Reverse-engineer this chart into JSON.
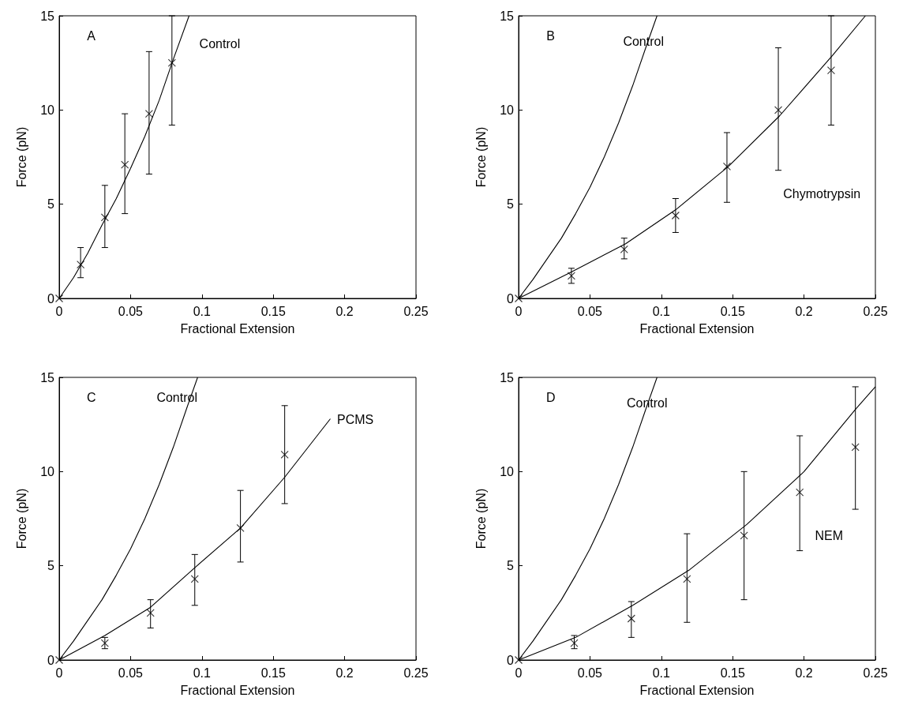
{
  "chart_data": [
    {
      "type": "scatter",
      "xlabel": "Fractional Extension",
      "ylabel": "Force (pN)",
      "xlim": [
        0,
        0.25
      ],
      "xticks": [
        0,
        0.05,
        0.1,
        0.15,
        0.2,
        0.25
      ],
      "ylim": [
        0,
        15
      ],
      "yticks": [
        0,
        5,
        10,
        15
      ],
      "grid": false,
      "annotations": [
        "A",
        "Control"
      ],
      "series": [
        {
          "marker": "cross",
          "color": "#000000",
          "x": [
            0,
            0.015,
            0.032,
            0.046,
            0.063,
            0.079
          ],
          "values": [
            0,
            1.8,
            4.3,
            7.1,
            9.8,
            12.5
          ],
          "errors": [
            null,
            [
              1.1,
              2.7
            ],
            [
              2.7,
              6.0
            ],
            [
              4.5,
              9.8
            ],
            [
              6.6,
              13.1
            ],
            [
              9.2,
              15
            ]
          ]
        },
        {
          "type": "line",
          "marker": "none",
          "line_style": "solid",
          "color": "#000000",
          "x": [
            0,
            0.01,
            0.02,
            0.03,
            0.04,
            0.05,
            0.06,
            0.07,
            0.08,
            0.091
          ],
          "values": [
            0,
            1.1,
            2.4,
            3.9,
            5.3,
            6.9,
            8.6,
            10.5,
            12.7,
            15
          ]
        }
      ]
    },
    {
      "type": "scatter",
      "xlabel": "Fractional Extension",
      "ylabel": "Force (pN)",
      "xlim": [
        0,
        0.25
      ],
      "xticks": [
        0,
        0.05,
        0.1,
        0.15,
        0.2,
        0.25
      ],
      "ylim": [
        0,
        15
      ],
      "yticks": [
        0,
        5,
        10,
        15
      ],
      "grid": false,
      "annotations": [
        "B",
        "Control",
        "Chymotrypsin"
      ],
      "series": [
        {
          "type": "line",
          "marker": "none",
          "line_style": "solid",
          "color": "#000000",
          "x": [
            0,
            0.01,
            0.02,
            0.03,
            0.04,
            0.05,
            0.06,
            0.07,
            0.08,
            0.09,
            0.097
          ],
          "values": [
            0,
            1.0,
            2.1,
            3.2,
            4.5,
            5.9,
            7.5,
            9.3,
            11.3,
            13.5,
            15
          ]
        },
        {
          "marker": "cross",
          "color": "#000000",
          "x": [
            0,
            0.037,
            0.074,
            0.11,
            0.146,
            0.182,
            0.219
          ],
          "values": [
            0,
            1.2,
            2.6,
            4.4,
            7.0,
            10.0,
            12.1
          ],
          "errors": [
            null,
            [
              0.8,
              1.6
            ],
            [
              2.1,
              3.2
            ],
            [
              3.5,
              5.3
            ],
            [
              5.1,
              8.8
            ],
            [
              6.8,
              13.3
            ],
            [
              9.2,
              15
            ]
          ]
        },
        {
          "type": "line",
          "marker": "none",
          "line_style": "solid",
          "color": "#000000",
          "x": [
            0,
            0.037,
            0.075,
            0.11,
            0.147,
            0.183,
            0.22,
            0.243
          ],
          "values": [
            0,
            1.4,
            2.9,
            4.7,
            7.0,
            9.7,
            12.9,
            15
          ]
        }
      ]
    },
    {
      "type": "scatter",
      "xlabel": "Fractional Extension",
      "ylabel": "Force (pN)",
      "xlim": [
        0,
        0.25
      ],
      "xticks": [
        0,
        0.05,
        0.1,
        0.15,
        0.2,
        0.25
      ],
      "ylim": [
        0,
        15
      ],
      "yticks": [
        0,
        5,
        10,
        15
      ],
      "grid": false,
      "annotations": [
        "C",
        "Control",
        "PCMS"
      ],
      "series": [
        {
          "type": "line",
          "marker": "none",
          "line_style": "solid",
          "color": "#000000",
          "x": [
            0,
            0.01,
            0.02,
            0.03,
            0.04,
            0.05,
            0.06,
            0.07,
            0.08,
            0.09,
            0.097
          ],
          "values": [
            0,
            1.0,
            2.1,
            3.2,
            4.5,
            5.9,
            7.5,
            9.3,
            11.3,
            13.5,
            15
          ]
        },
        {
          "marker": "cross",
          "color": "#000000",
          "x": [
            0,
            0.032,
            0.064,
            0.095,
            0.127,
            0.158
          ],
          "values": [
            0,
            0.9,
            2.5,
            4.3,
            7.0,
            10.9
          ],
          "errors": [
            null,
            [
              0.6,
              1.2
            ],
            [
              1.7,
              3.2
            ],
            [
              2.9,
              5.6
            ],
            [
              5.2,
              9.0
            ],
            [
              8.3,
              13.5
            ]
          ]
        },
        {
          "type": "line",
          "marker": "none",
          "line_style": "solid",
          "color": "#000000",
          "x": [
            0,
            0.032,
            0.064,
            0.095,
            0.127,
            0.158,
            0.19
          ],
          "values": [
            0,
            1.3,
            2.8,
            4.9,
            7.0,
            9.7,
            12.8
          ]
        }
      ]
    },
    {
      "type": "scatter",
      "xlabel": "Fractional Extension",
      "ylabel": "Force (pN)",
      "xlim": [
        0,
        0.25
      ],
      "xticks": [
        0,
        0.05,
        0.1,
        0.15,
        0.2,
        0.25
      ],
      "ylim": [
        0,
        15
      ],
      "yticks": [
        0,
        5,
        10,
        15
      ],
      "grid": false,
      "annotations": [
        "D",
        "Control",
        "NEM"
      ],
      "series": [
        {
          "type": "line",
          "marker": "none",
          "line_style": "solid",
          "color": "#000000",
          "x": [
            0,
            0.01,
            0.02,
            0.03,
            0.04,
            0.05,
            0.06,
            0.07,
            0.08,
            0.09,
            0.097
          ],
          "values": [
            0,
            1.0,
            2.1,
            3.2,
            4.5,
            5.9,
            7.5,
            9.3,
            11.3,
            13.5,
            15
          ]
        },
        {
          "marker": "cross",
          "color": "#000000",
          "x": [
            0,
            0.039,
            0.079,
            0.118,
            0.158,
            0.197,
            0.236
          ],
          "values": [
            0,
            0.9,
            2.2,
            4.3,
            6.6,
            8.9,
            11.3
          ],
          "errors": [
            null,
            [
              0.6,
              1.3
            ],
            [
              1.2,
              3.1
            ],
            [
              2.0,
              6.7
            ],
            [
              3.2,
              10.0
            ],
            [
              5.8,
              11.9
            ],
            [
              8.0,
              14.5
            ]
          ]
        },
        {
          "type": "line",
          "marker": "none",
          "line_style": "solid",
          "color": "#000000",
          "x": [
            0,
            0.04,
            0.08,
            0.12,
            0.16,
            0.2,
            0.236,
            0.25
          ],
          "values": [
            0,
            1.2,
            2.9,
            4.8,
            7.2,
            10.0,
            13.3,
            14.5
          ]
        }
      ]
    }
  ]
}
